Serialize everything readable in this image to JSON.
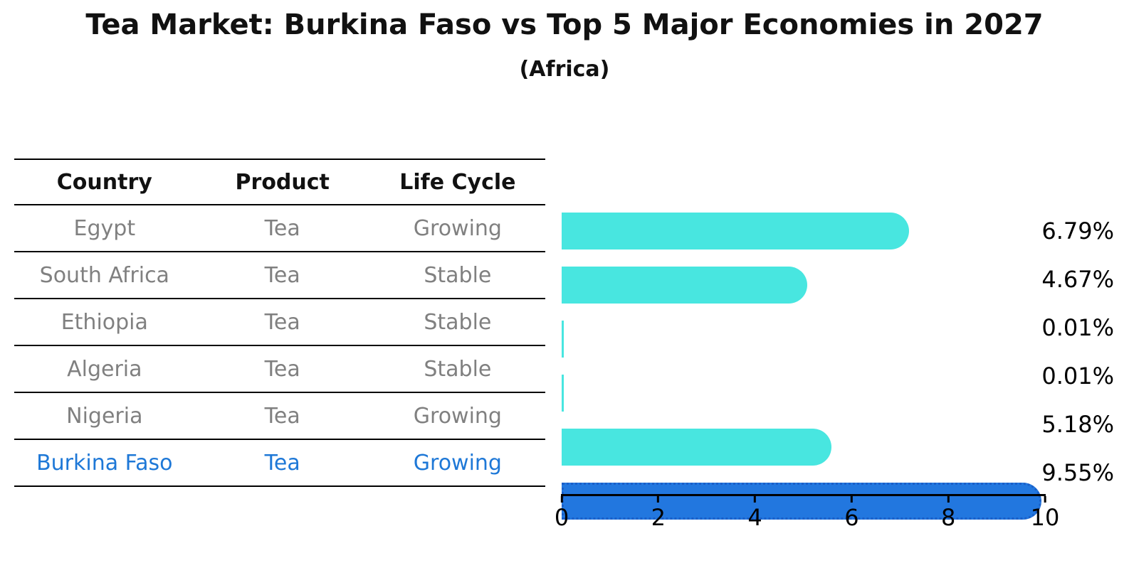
{
  "header": {
    "title": "Tea Market: Burkina Faso vs Top 5 Major Economies in 2027",
    "subtitle": "(Africa)"
  },
  "table": {
    "columns": [
      "Country",
      "Product",
      "Life Cycle"
    ],
    "rows": [
      {
        "country": "Egypt",
        "product": "Tea",
        "life_cycle": "Growing",
        "highlighted": false
      },
      {
        "country": "South Africa",
        "product": "Tea",
        "life_cycle": "Stable",
        "highlighted": false
      },
      {
        "country": "Ethiopia",
        "product": "Tea",
        "life_cycle": "Stable",
        "highlighted": false
      },
      {
        "country": "Algeria",
        "product": "Tea",
        "life_cycle": "Stable",
        "highlighted": false
      },
      {
        "country": "Nigeria",
        "product": "Tea",
        "life_cycle": "Growing",
        "highlighted": false
      },
      {
        "country": "Burkina Faso",
        "product": "Tea",
        "life_cycle": "Growing",
        "highlighted": true
      }
    ]
  },
  "chart_data": {
    "type": "bar",
    "orientation": "horizontal",
    "title": "Tea Market: Burkina Faso vs Top 5 Major Economies in 2027",
    "subtitle": "(Africa)",
    "categories": [
      "Egypt",
      "South Africa",
      "Ethiopia",
      "Algeria",
      "Nigeria",
      "Burkina Faso"
    ],
    "values": [
      6.79,
      4.67,
      0.01,
      0.01,
      5.18,
      9.55
    ],
    "value_labels": [
      "6.79%",
      "4.67%",
      "0.01%",
      "0.01%",
      "5.18%",
      "9.55%"
    ],
    "xlabel": "",
    "ylabel": "",
    "xlim": [
      0,
      10
    ],
    "x_ticks": [
      "0",
      "2",
      "4",
      "6",
      "8",
      "10"
    ],
    "grid": false,
    "legend": false,
    "highlight_index": 5,
    "colors": {
      "bar_default": "#48e6e0",
      "bar_highlight": "#2277df",
      "bar_highlight_border": "#1a5fc8",
      "text_muted": "#808080",
      "text_highlight": "#1e78d7",
      "text_primary": "#111111"
    }
  }
}
